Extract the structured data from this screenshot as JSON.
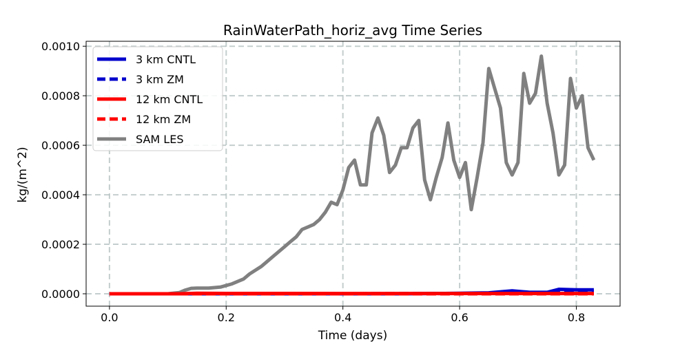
{
  "chart_data": {
    "type": "line",
    "title": "RainWaterPath_horiz_avg Time Series",
    "xlabel": "Time (days)",
    "ylabel": "kg/(m^2)",
    "xlim": [
      -0.04,
      0.875
    ],
    "ylim": [
      -5e-05,
      0.00102
    ],
    "x_ticks": [
      0.0,
      0.2,
      0.4,
      0.6,
      0.8
    ],
    "x_tick_labels": [
      "0.0",
      "0.2",
      "0.4",
      "0.6",
      "0.8"
    ],
    "y_ticks": [
      0.0,
      0.0002,
      0.0004,
      0.0006,
      0.0008,
      0.001
    ],
    "y_tick_labels": [
      "0.0000",
      "0.0002",
      "0.0004",
      "0.0006",
      "0.0008",
      "0.0010"
    ],
    "grid": true,
    "legend_position": "upper-left",
    "series": [
      {
        "name": "3 km CNTL",
        "color": "#0000cc",
        "style": "solid",
        "x": [
          0.0,
          0.1,
          0.2,
          0.3,
          0.4,
          0.5,
          0.6,
          0.65,
          0.69,
          0.72,
          0.75,
          0.77,
          0.8,
          0.83
        ],
        "y": [
          0.0,
          0.0,
          0.0,
          0.0,
          0.0,
          0.0,
          2e-06,
          4e-06,
          1.2e-05,
          6e-06,
          6e-06,
          1.8e-05,
          1.6e-05,
          1.6e-05
        ]
      },
      {
        "name": "3 km ZM",
        "color": "#0000cc",
        "style": "dashed",
        "x": [
          0.0,
          0.2,
          0.4,
          0.6,
          0.7,
          0.8,
          0.83
        ],
        "y": [
          0.0,
          0.0,
          0.0,
          1e-06,
          3e-06,
          6e-06,
          8e-06
        ]
      },
      {
        "name": "12 km CNTL",
        "color": "#ff0000",
        "style": "solid",
        "x": [
          0.0,
          0.12,
          0.15,
          0.2,
          0.3,
          0.4,
          0.5,
          0.6,
          0.7,
          0.8,
          0.83
        ],
        "y": [
          0.0,
          0.0,
          2e-06,
          1.5e-06,
          1.5e-06,
          1e-06,
          1e-06,
          1e-06,
          1e-06,
          1e-06,
          1e-06
        ]
      },
      {
        "name": "12 km ZM",
        "color": "#ff0000",
        "style": "dashed",
        "x": [
          0.0,
          0.2,
          0.4,
          0.6,
          0.8,
          0.83
        ],
        "y": [
          0.0,
          0.0,
          0.0,
          0.0,
          0.0,
          0.0
        ]
      },
      {
        "name": "SAM LES",
        "color": "#808080",
        "style": "solid",
        "x": [
          0.0,
          0.05,
          0.1,
          0.12,
          0.13,
          0.14,
          0.15,
          0.17,
          0.19,
          0.21,
          0.23,
          0.24,
          0.26,
          0.27,
          0.28,
          0.3,
          0.31,
          0.32,
          0.33,
          0.34,
          0.35,
          0.36,
          0.37,
          0.38,
          0.39,
          0.4,
          0.41,
          0.42,
          0.43,
          0.44,
          0.45,
          0.46,
          0.47,
          0.48,
          0.49,
          0.5,
          0.51,
          0.52,
          0.53,
          0.54,
          0.55,
          0.56,
          0.57,
          0.58,
          0.59,
          0.6,
          0.61,
          0.62,
          0.63,
          0.64,
          0.65,
          0.66,
          0.67,
          0.68,
          0.69,
          0.7,
          0.71,
          0.72,
          0.73,
          0.74,
          0.75,
          0.76,
          0.77,
          0.78,
          0.79,
          0.8,
          0.81,
          0.82,
          0.83
        ],
        "y": [
          0.0,
          0.0,
          0.0,
          5e-06,
          1.5e-05,
          2.2e-05,
          2.3e-05,
          2.3e-05,
          2.7e-05,
          4e-05,
          6e-05,
          8e-05,
          0.00011,
          0.00013,
          0.00015,
          0.00019,
          0.00021,
          0.00023,
          0.00026,
          0.00027,
          0.00028,
          0.0003,
          0.00033,
          0.00037,
          0.00036,
          0.00042,
          0.00051,
          0.00054,
          0.00044,
          0.00044,
          0.00065,
          0.00071,
          0.00064,
          0.00049,
          0.00052,
          0.00059,
          0.00059,
          0.00067,
          0.0007,
          0.00046,
          0.00038,
          0.00047,
          0.00055,
          0.00069,
          0.00054,
          0.00047,
          0.00053,
          0.00034,
          0.00047,
          0.00061,
          0.00091,
          0.00083,
          0.00075,
          0.00053,
          0.00048,
          0.00053,
          0.00089,
          0.00077,
          0.00081,
          0.00096,
          0.00077,
          0.00065,
          0.00048,
          0.00052,
          0.00087,
          0.00075,
          0.0008,
          0.00059,
          0.00054
        ]
      }
    ]
  }
}
